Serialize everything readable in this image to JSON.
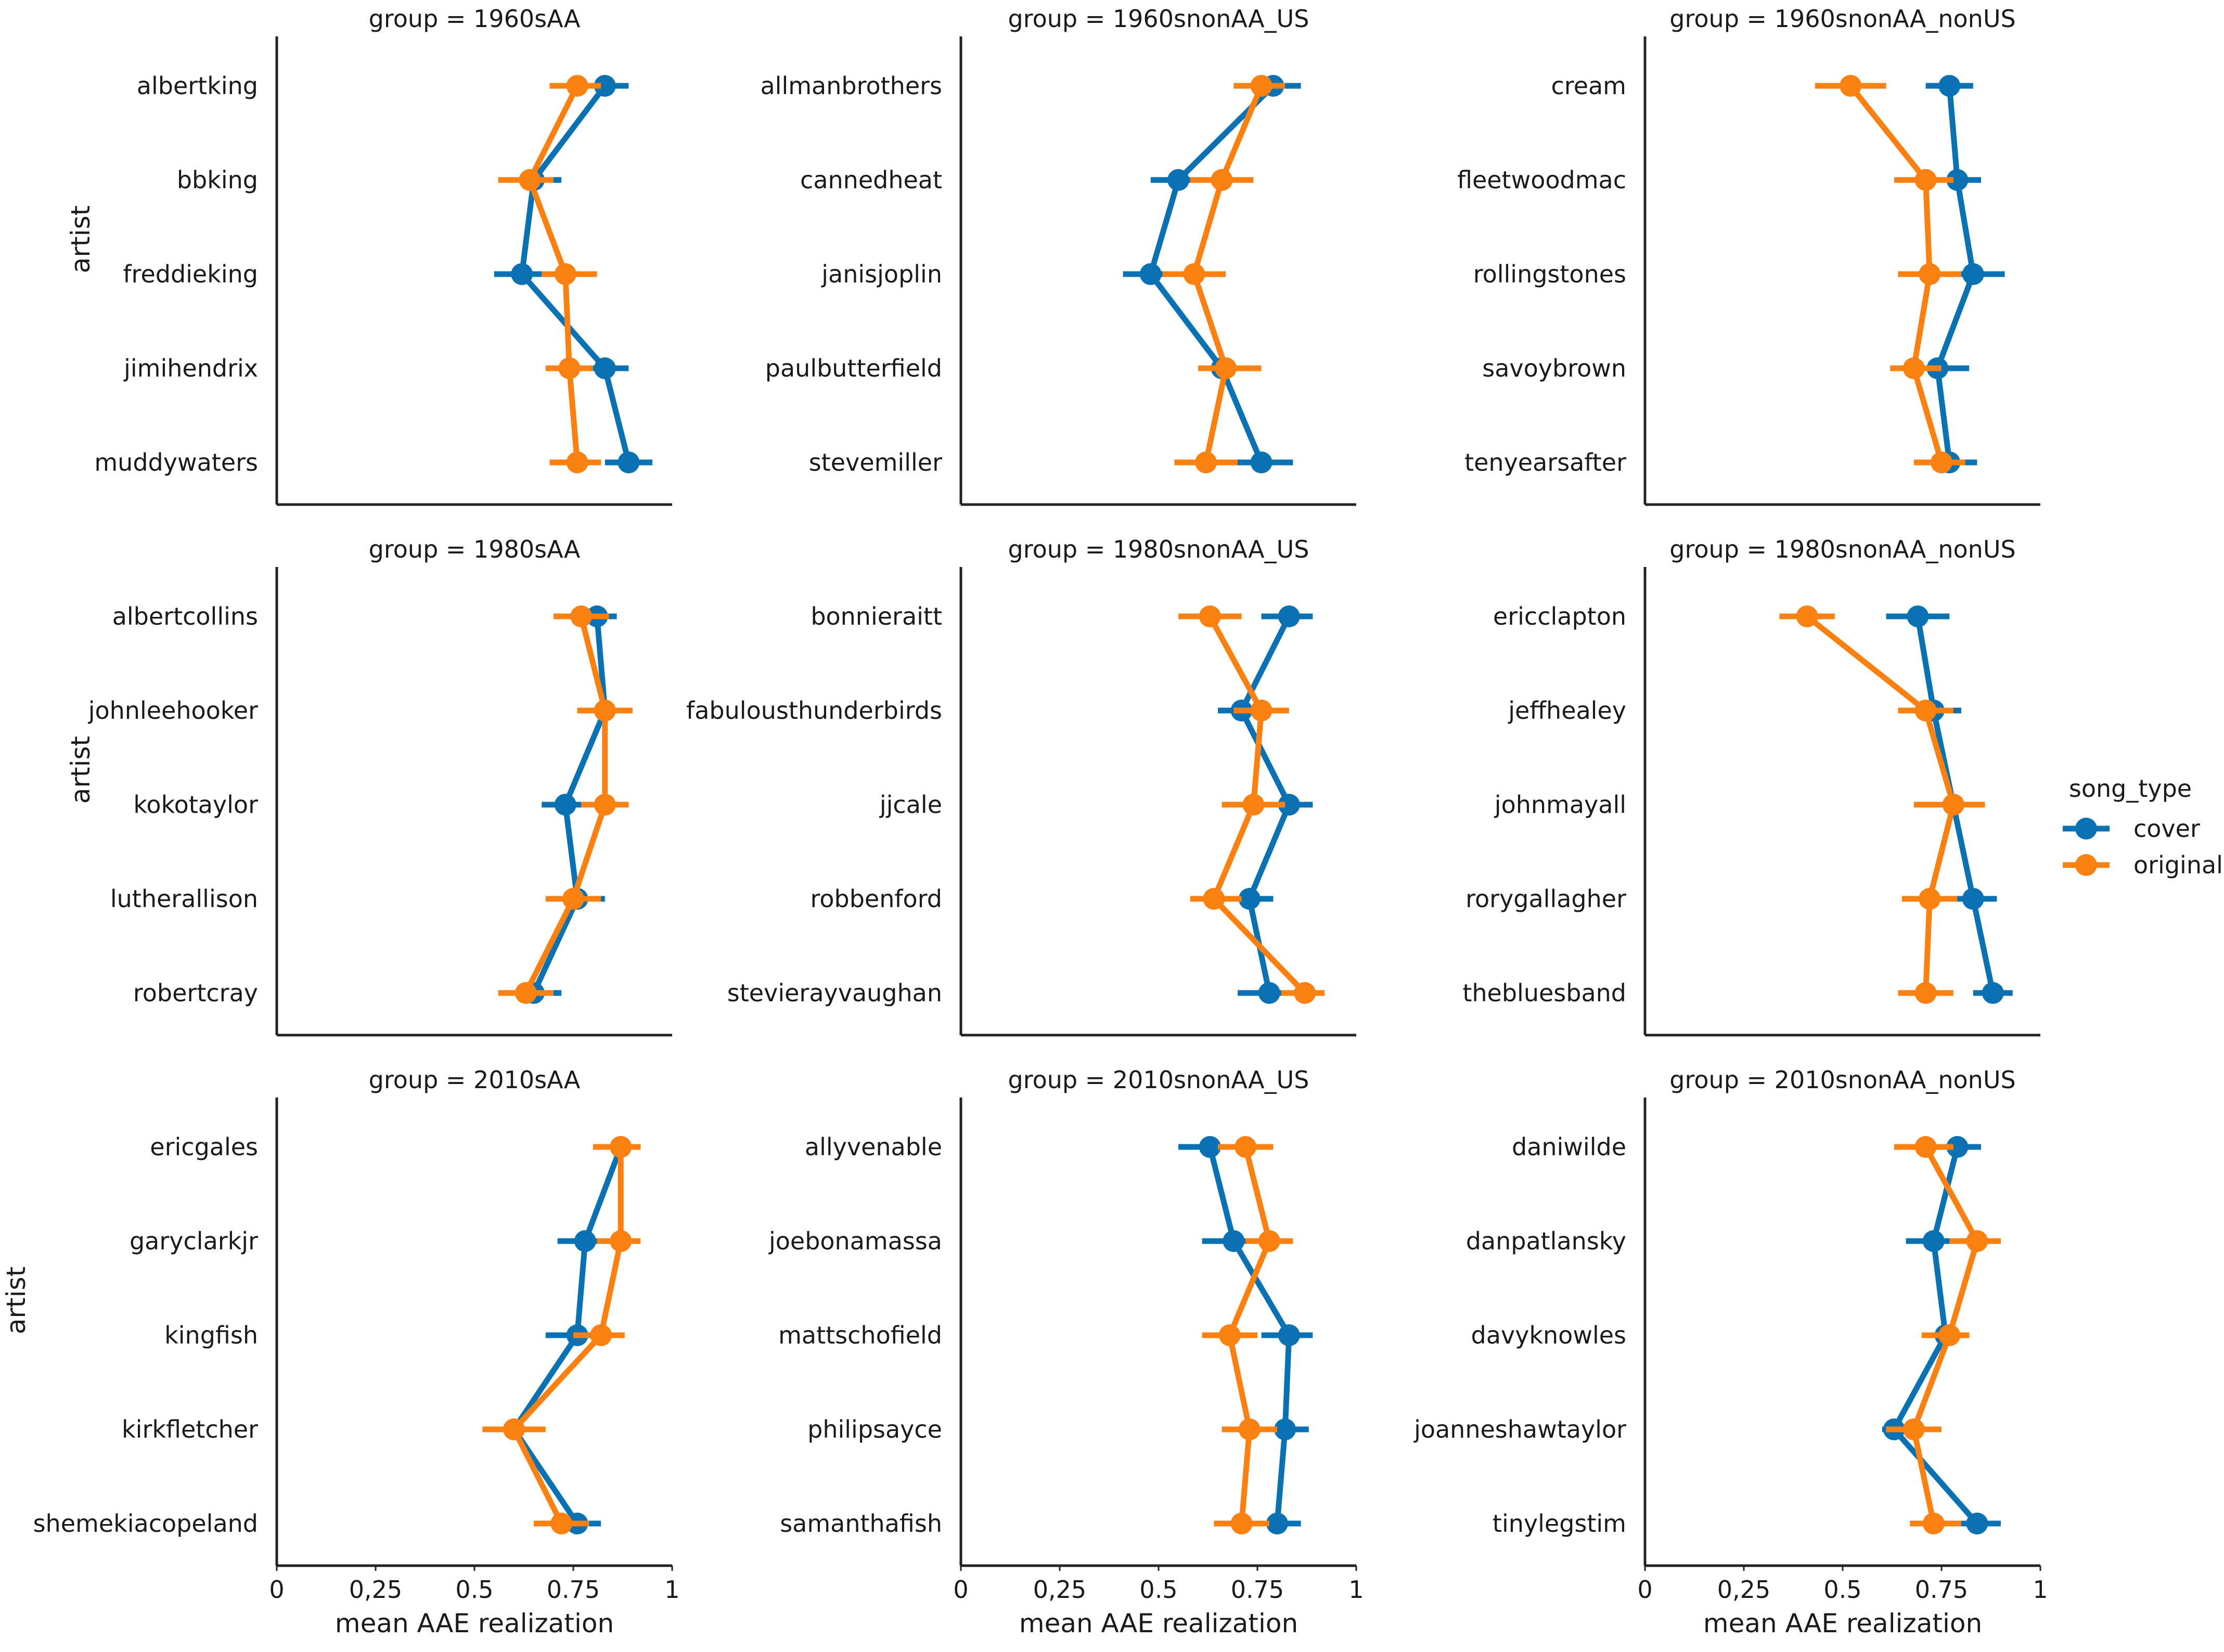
{
  "chart_data": {
    "type": "pointplot-facet",
    "xlabel": "mean AAE realization",
    "ylabel": "artist",
    "xlim": [
      0,
      1
    ],
    "xticks": [
      0,
      0.25,
      0.5,
      0.75,
      1
    ],
    "xtick_labels": [
      "0",
      "0,25",
      "0.5",
      "0.75",
      "1"
    ],
    "legend": {
      "title": "song_type",
      "placement": "right",
      "entries": [
        {
          "name": "cover",
          "color": "#1f77b4"
        },
        {
          "name": "original",
          "color": "#ff7f0e"
        }
      ]
    },
    "colors": {
      "cover": "#0a72b2",
      "original": "#fa8012"
    },
    "panels": [
      {
        "title": "group = 1960sAA",
        "artists": [
          "albertking",
          "bbking",
          "freddieking",
          "jimihendrix",
          "muddywaters"
        ],
        "cover": [
          0.83,
          0.65,
          0.62,
          0.83,
          0.89
        ],
        "cover_ci": [
          [
            0.77,
            0.89
          ],
          [
            0.6,
            0.72
          ],
          [
            0.55,
            0.69
          ],
          [
            0.77,
            0.89
          ],
          [
            0.83,
            0.95
          ]
        ],
        "original": [
          0.76,
          0.64,
          0.73,
          0.74,
          0.76
        ],
        "original_ci": [
          [
            0.69,
            0.82
          ],
          [
            0.56,
            0.7
          ],
          [
            0.67,
            0.81
          ],
          [
            0.68,
            0.8
          ],
          [
            0.69,
            0.82
          ]
        ]
      },
      {
        "title": "group = 1960snonAA_US",
        "artists": [
          "allmanbrothers",
          "cannedheat",
          "janisjoplin",
          "paulbutterfield",
          "stevemiller"
        ],
        "cover": [
          0.79,
          0.55,
          0.48,
          0.66,
          0.76
        ],
        "cover_ci": [
          [
            0.72,
            0.86
          ],
          [
            0.48,
            0.62
          ],
          [
            0.41,
            0.54
          ],
          [
            0.61,
            0.71
          ],
          [
            0.69,
            0.84
          ]
        ],
        "original": [
          0.76,
          0.66,
          0.59,
          0.67,
          0.62
        ],
        "original_ci": [
          [
            0.69,
            0.82
          ],
          [
            0.58,
            0.74
          ],
          [
            0.51,
            0.67
          ],
          [
            0.6,
            0.76
          ],
          [
            0.54,
            0.7
          ]
        ]
      },
      {
        "title": "group = 1960snonAA_nonUS",
        "artists": [
          "cream",
          "fleetwoodmac",
          "rollingstones",
          "savoybrown",
          "tenyearsafter"
        ],
        "cover": [
          0.77,
          0.79,
          0.83,
          0.74,
          0.77
        ],
        "cover_ci": [
          [
            0.71,
            0.83
          ],
          [
            0.72,
            0.85
          ],
          [
            0.75,
            0.91
          ],
          [
            0.67,
            0.82
          ],
          [
            0.71,
            0.84
          ]
        ],
        "original": [
          0.52,
          0.71,
          0.72,
          0.68,
          0.75
        ],
        "original_ci": [
          [
            0.43,
            0.61
          ],
          [
            0.63,
            0.78
          ],
          [
            0.64,
            0.8
          ],
          [
            0.62,
            0.75
          ],
          [
            0.68,
            0.81
          ]
        ]
      },
      {
        "title": "group = 1980sAA",
        "artists": [
          "albertcollins",
          "johnleehooker",
          "kokotaylor",
          "lutherallison",
          "robertcray"
        ],
        "cover": [
          0.81,
          0.83,
          0.73,
          0.76,
          0.65
        ],
        "cover_ci": [
          [
            0.76,
            0.86
          ],
          [
            0.78,
            0.88
          ],
          [
            0.67,
            0.79
          ],
          [
            0.7,
            0.83
          ],
          [
            0.58,
            0.72
          ]
        ],
        "original": [
          0.77,
          0.83,
          0.83,
          0.75,
          0.63
        ],
        "original_ci": [
          [
            0.7,
            0.84
          ],
          [
            0.76,
            0.9
          ],
          [
            0.77,
            0.89
          ],
          [
            0.68,
            0.82
          ],
          [
            0.56,
            0.7
          ]
        ]
      },
      {
        "title": "group = 1980snonAA_US",
        "artists": [
          "bonnieraitt",
          "fabulousthunderbirds",
          "jjcale",
          "robbenford",
          "stevierayvaughan"
        ],
        "cover": [
          0.83,
          0.71,
          0.83,
          0.73,
          0.78
        ],
        "cover_ci": [
          [
            0.76,
            0.89
          ],
          [
            0.65,
            0.78
          ],
          [
            0.77,
            0.89
          ],
          [
            0.67,
            0.79
          ],
          [
            0.7,
            0.85
          ]
        ],
        "original": [
          0.63,
          0.76,
          0.74,
          0.64,
          0.87
        ],
        "original_ci": [
          [
            0.55,
            0.71
          ],
          [
            0.69,
            0.83
          ],
          [
            0.66,
            0.82
          ],
          [
            0.58,
            0.71
          ],
          [
            0.81,
            0.92
          ]
        ]
      },
      {
        "title": "group = 1980snonAA_nonUS",
        "artists": [
          "ericclapton",
          "jeffhealey",
          "johnmayall",
          "rorygallagher",
          "thebluesband"
        ],
        "cover": [
          0.69,
          0.73,
          0.78,
          0.83,
          0.88
        ],
        "cover_ci": [
          [
            0.61,
            0.77
          ],
          [
            0.67,
            0.8
          ],
          [
            0.71,
            0.84
          ],
          [
            0.77,
            0.89
          ],
          [
            0.83,
            0.93
          ]
        ],
        "original": [
          0.41,
          0.71,
          0.78,
          0.72,
          0.71
        ],
        "original_ci": [
          [
            0.34,
            0.48
          ],
          [
            0.64,
            0.78
          ],
          [
            0.68,
            0.86
          ],
          [
            0.65,
            0.79
          ],
          [
            0.64,
            0.78
          ]
        ]
      },
      {
        "title": "group = 2010sAA",
        "artists": [
          "ericgales",
          "garyclarkjr",
          "kingfish",
          "kirkfletcher",
          "shemekiacopeland"
        ],
        "cover": [
          0.87,
          0.78,
          0.76,
          0.6,
          0.76
        ],
        "cover_ci": [
          [
            0.82,
            0.92
          ],
          [
            0.71,
            0.85
          ],
          [
            0.68,
            0.82
          ],
          [
            0.54,
            0.67
          ],
          [
            0.71,
            0.82
          ]
        ],
        "original": [
          0.87,
          0.87,
          0.82,
          0.6,
          0.72
        ],
        "original_ci": [
          [
            0.8,
            0.92
          ],
          [
            0.81,
            0.92
          ],
          [
            0.75,
            0.88
          ],
          [
            0.52,
            0.68
          ],
          [
            0.65,
            0.79
          ]
        ]
      },
      {
        "title": "group = 2010snonAA_US",
        "artists": [
          "allyvenable",
          "joebonamassa",
          "mattschofield",
          "philipsayce",
          "samanthafish"
        ],
        "cover": [
          0.63,
          0.69,
          0.83,
          0.82,
          0.8
        ],
        "cover_ci": [
          [
            0.55,
            0.7
          ],
          [
            0.61,
            0.76
          ],
          [
            0.76,
            0.89
          ],
          [
            0.77,
            0.88
          ],
          [
            0.74,
            0.86
          ]
        ],
        "original": [
          0.72,
          0.78,
          0.68,
          0.73,
          0.71
        ],
        "original_ci": [
          [
            0.65,
            0.79
          ],
          [
            0.72,
            0.84
          ],
          [
            0.61,
            0.75
          ],
          [
            0.66,
            0.8
          ],
          [
            0.64,
            0.78
          ]
        ]
      },
      {
        "title": "group = 2010snonAA_nonUS",
        "artists": [
          "daniwilde",
          "danpatlansky",
          "davyknowles",
          "joanneshawtaylor",
          "tinylegstim"
        ],
        "cover": [
          0.79,
          0.73,
          0.76,
          0.63,
          0.84
        ],
        "cover_ci": [
          [
            0.74,
            0.85
          ],
          [
            0.66,
            0.8
          ],
          [
            0.71,
            0.82
          ],
          [
            0.6,
            0.67
          ],
          [
            0.79,
            0.9
          ]
        ],
        "original": [
          0.71,
          0.84,
          0.77,
          0.68,
          0.73
        ],
        "original_ci": [
          [
            0.63,
            0.78
          ],
          [
            0.77,
            0.9
          ],
          [
            0.7,
            0.82
          ],
          [
            0.61,
            0.75
          ],
          [
            0.67,
            0.8
          ]
        ]
      }
    ]
  }
}
